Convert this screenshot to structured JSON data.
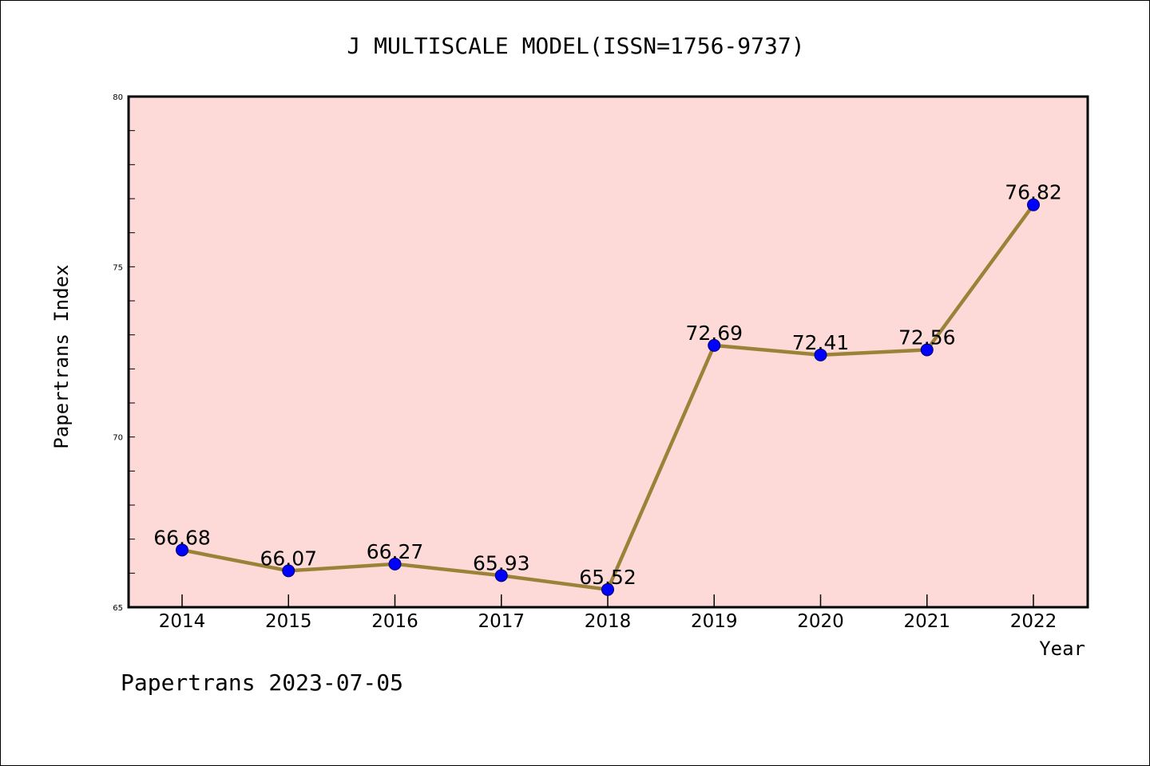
{
  "chart_data": {
    "type": "line",
    "title": "J MULTISCALE MODEL(ISSN=1756-9737)",
    "xlabel": "Year",
    "ylabel": "Papertrans Index",
    "footer": "Papertrans 2023-07-05",
    "x": [
      "2014",
      "2015",
      "2016",
      "2017",
      "2018",
      "2019",
      "2020",
      "2021",
      "2022"
    ],
    "values": [
      66.68,
      66.07,
      66.27,
      65.93,
      65.52,
      72.69,
      72.41,
      72.56,
      76.82
    ],
    "value_labels": [
      "66.68",
      "66.07",
      "66.27",
      "65.93",
      "65.52",
      "72.69",
      "72.41",
      "72.56",
      "76.82"
    ],
    "ylim": [
      65,
      80
    ],
    "yticks": [
      "65",
      "70",
      "75",
      "80"
    ],
    "grid": false,
    "colors": {
      "plot_background": "#fddad7",
      "line": "#9a8238",
      "marker": "#0000ff",
      "marker_edge": "#00006e"
    }
  }
}
